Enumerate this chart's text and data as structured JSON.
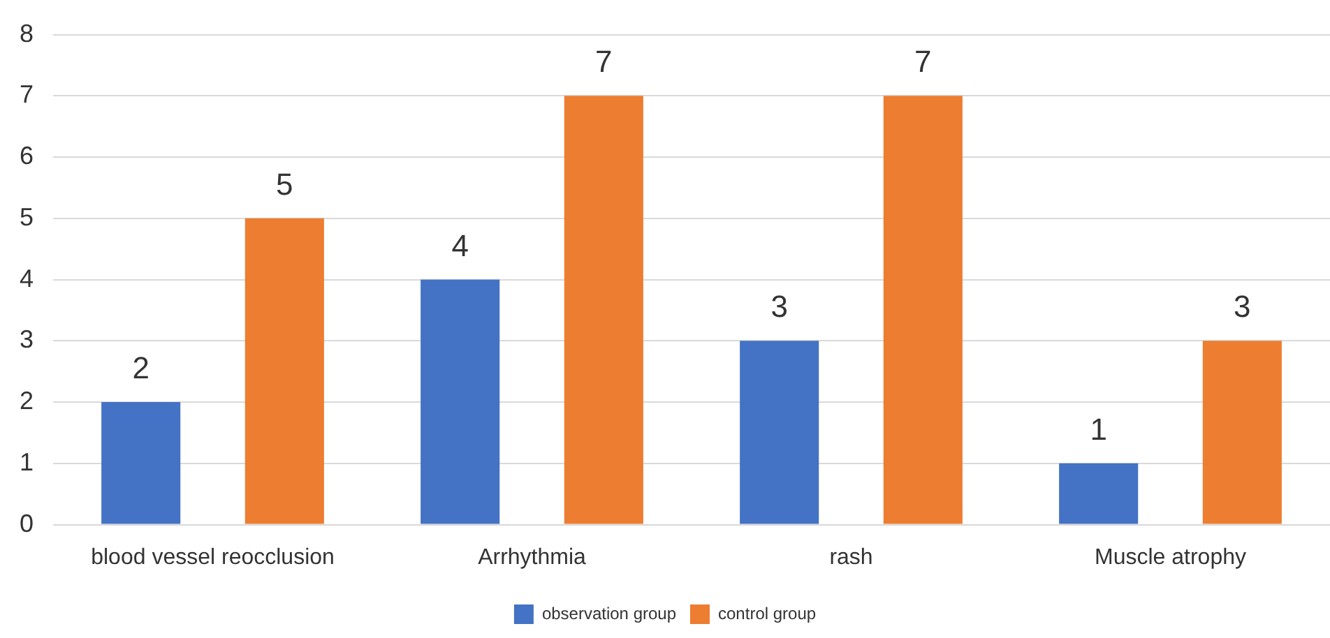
{
  "chart_data": {
    "type": "bar",
    "categories": [
      "blood vessel reocclusion",
      "Arrhythmia",
      "rash",
      "Muscle atrophy"
    ],
    "series": [
      {
        "name": "observation group",
        "color": "#4472c4",
        "values": [
          2,
          4,
          3,
          1
        ]
      },
      {
        "name": "control group",
        "color": "#ed7d31",
        "values": [
          5,
          7,
          7,
          3
        ]
      }
    ],
    "ylim": [
      0,
      8
    ],
    "yticks": [
      0,
      1,
      2,
      3,
      4,
      5,
      6,
      7,
      8
    ],
    "grid": "y",
    "legend": "bottom",
    "data_labels": true
  }
}
